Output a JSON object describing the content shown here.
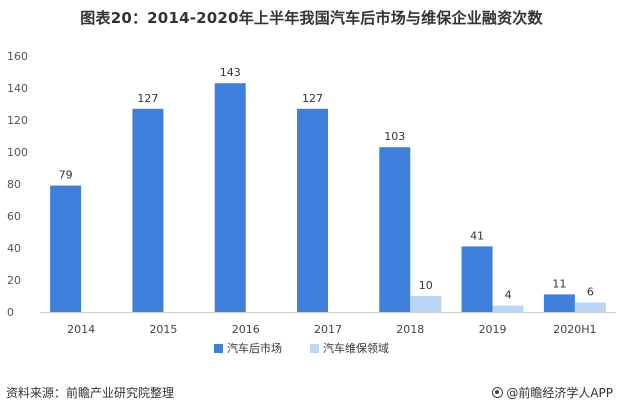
{
  "chart_data": {
    "type": "bar",
    "title": "图表20：2014-2020年上半年我国汽车后市场与维保企业融资次数",
    "categories": [
      "2014",
      "2015",
      "2016",
      "2017",
      "2018",
      "2019",
      "2020H1"
    ],
    "series": [
      {
        "name": "汽车后市场",
        "values": [
          79,
          127,
          143,
          127,
          103,
          41,
          11
        ],
        "color": "#3d7fdb"
      },
      {
        "name": "汽车维保领域",
        "values": [
          null,
          null,
          null,
          null,
          10,
          4,
          6
        ],
        "color": "#b9d6f7"
      }
    ],
    "ylim": [
      0,
      160
    ],
    "yticks": [
      0,
      20,
      40,
      60,
      80,
      100,
      120,
      140,
      160
    ],
    "grid": false,
    "legend": "bottom"
  },
  "footer": {
    "source": "资料来源：前瞻产业研究院整理",
    "brand": "@前瞻经济学人APP"
  }
}
